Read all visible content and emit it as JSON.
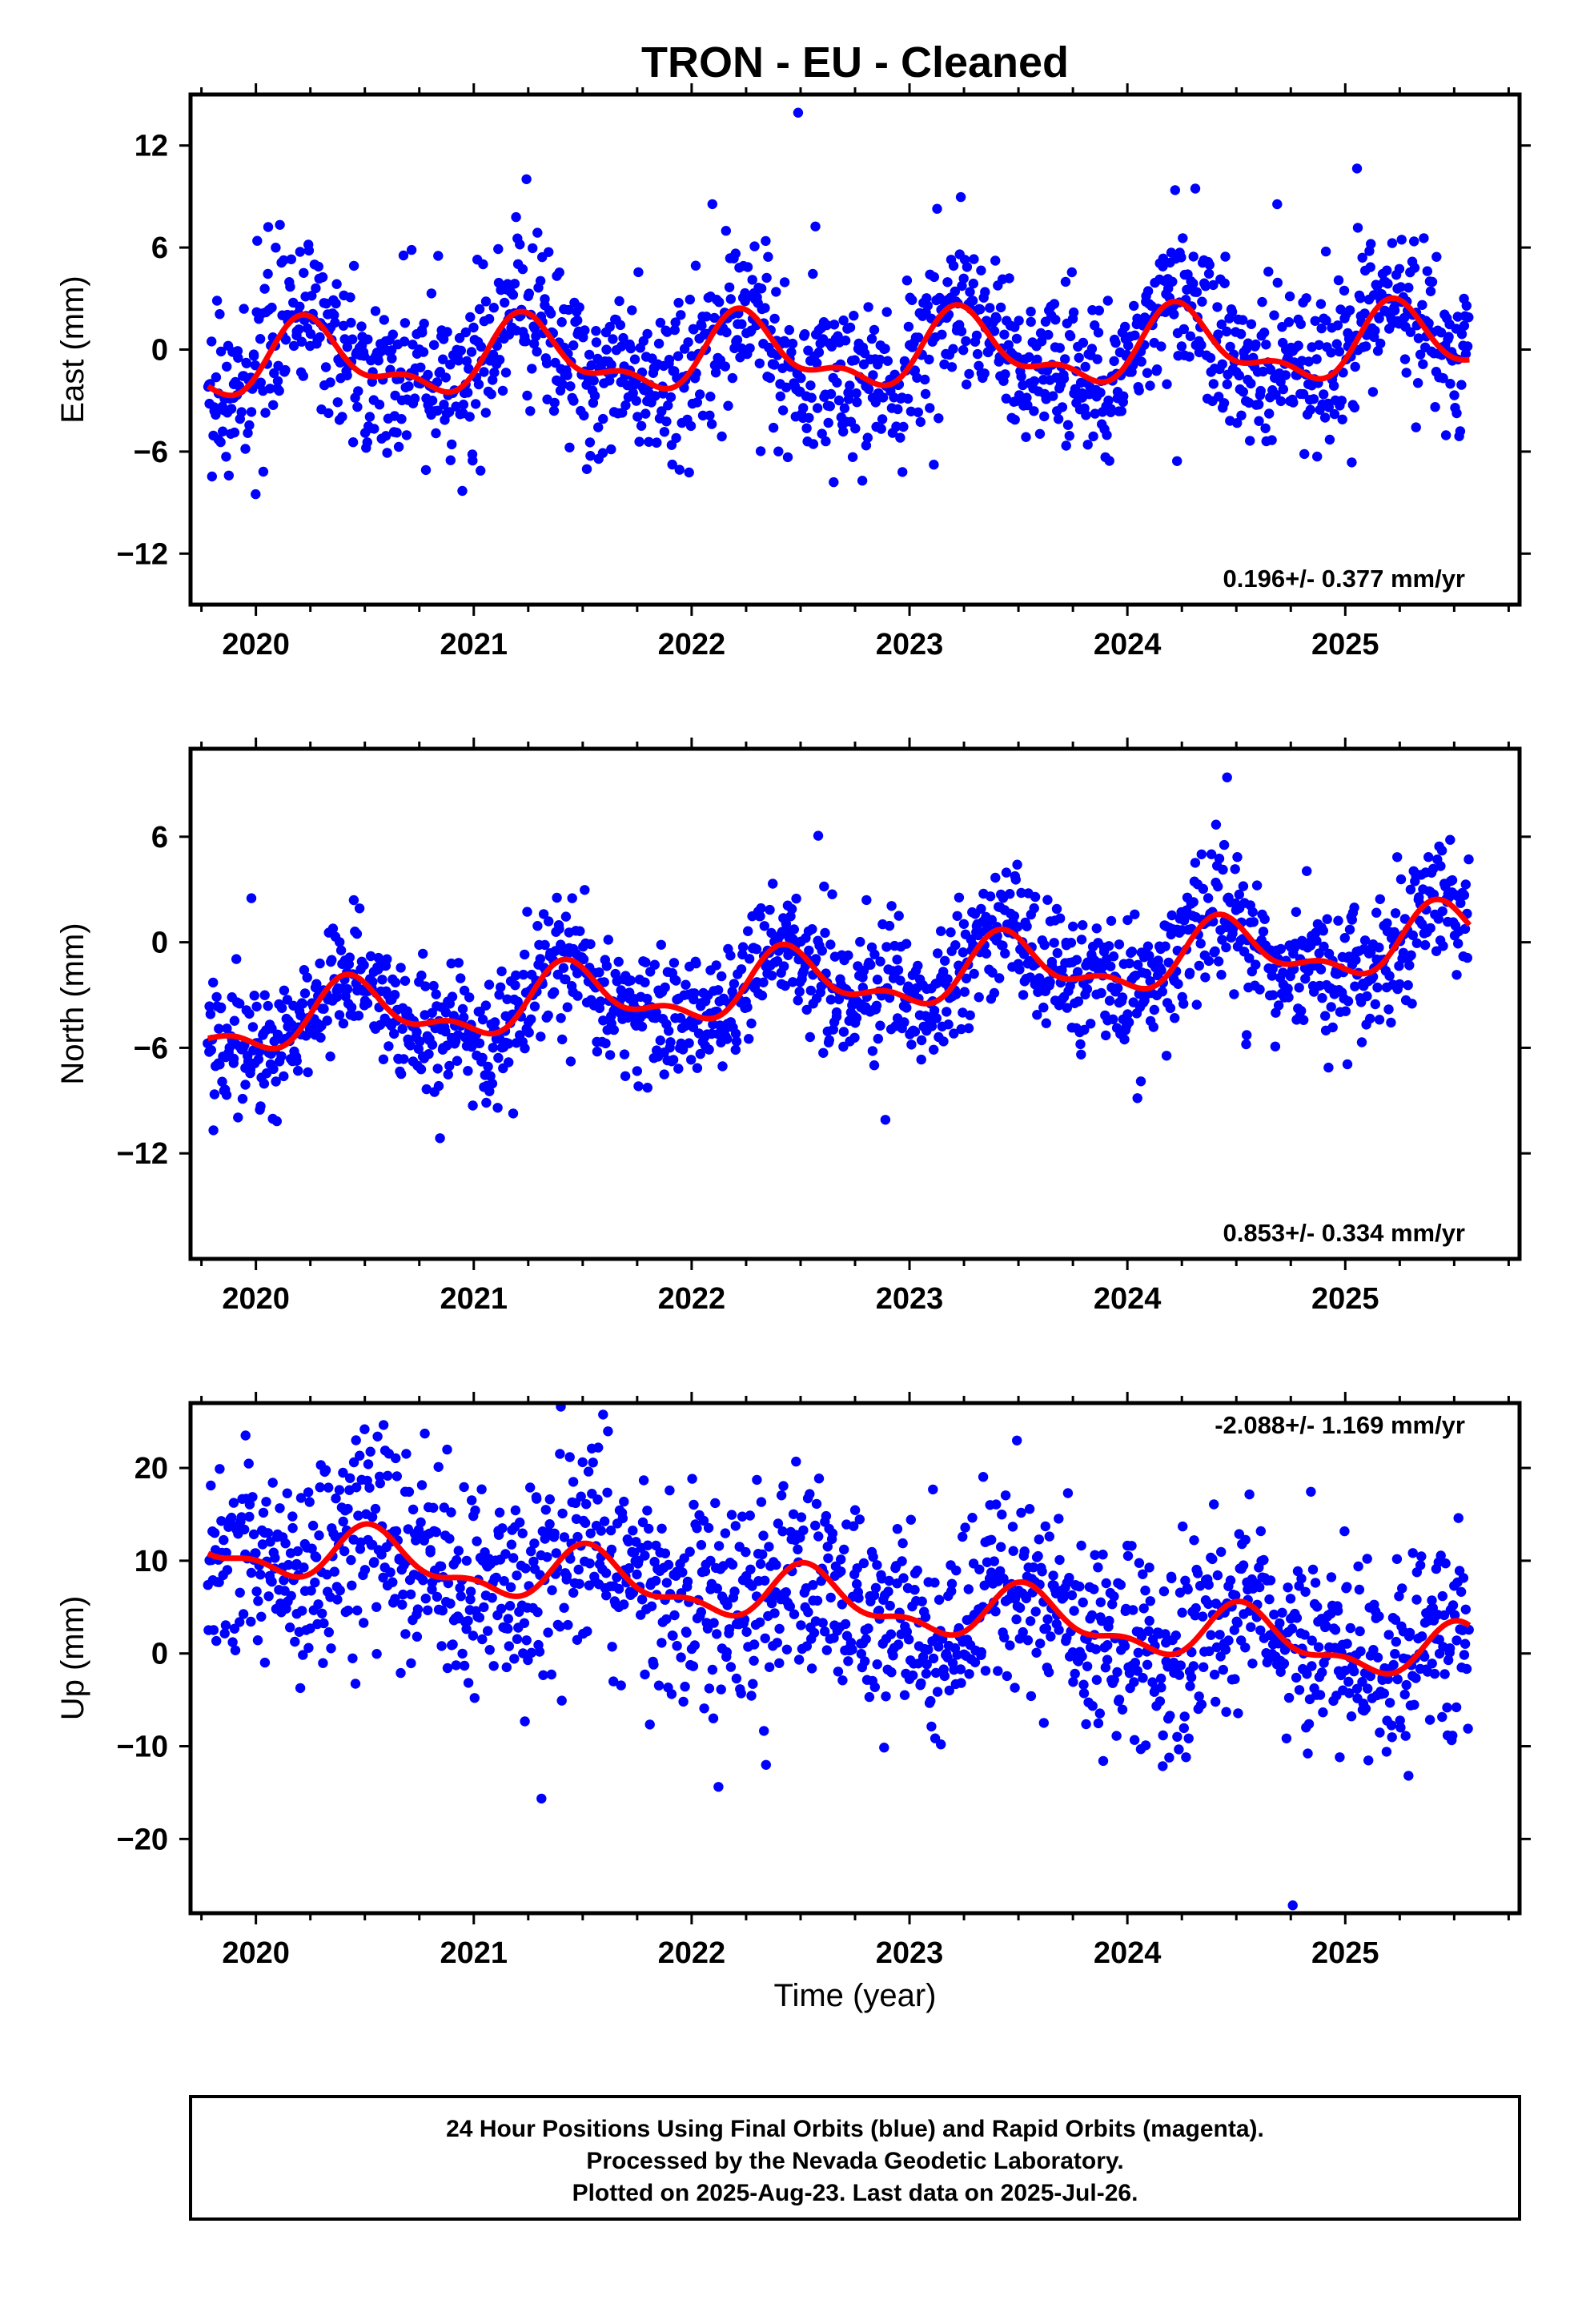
{
  "title": "TRON  - EU - Cleaned",
  "colors": {
    "points": "#0000ff",
    "fit": "#ff0000",
    "frame": "#000000"
  },
  "xaxis": {
    "label": "Time (year)",
    "ticks": [
      "2020",
      "2021",
      "2022",
      "2023",
      "2024",
      "2025"
    ],
    "range": [
      2019.7,
      2025.8
    ]
  },
  "caption": {
    "line1": "24 Hour Positions Using Final Orbits (blue) and Rapid Orbits (magenta).",
    "line2": "Processed by the Nevada Geodetic Laboratory.",
    "line3": "Plotted on 2025-Aug-23. Last data on 2025-Jul-26."
  },
  "chart_data": [
    {
      "type": "scatter",
      "ylabel": "East (mm)",
      "ylim": [
        -15,
        15
      ],
      "yticks": [
        "12",
        "6",
        "0",
        "-6",
        "-12"
      ],
      "rate_text": "0.196+/- 0.377 mm/yr",
      "rate_position": "bottom-right",
      "x_start": 2019.78,
      "x_end": 2025.57,
      "trend_slope": 0.196,
      "trend_offset": -0.3,
      "seasonal_amplitude": 1.9,
      "seasonal_phase_peak": 2020.25,
      "scatter_sd": 2.3,
      "fit_series": "smoothed model (red)",
      "data_series": "daily positions (blue)"
    },
    {
      "type": "scatter",
      "ylabel": "North (mm)",
      "ylim": [
        -18,
        11
      ],
      "yticks": [
        "6",
        "0",
        "-6",
        "-12"
      ],
      "rate_text": "0.853+/- 0.334 mm/yr",
      "rate_position": "bottom-right",
      "x_start": 2019.78,
      "x_end": 2025.57,
      "trend_slope": 0.853,
      "trend_offset": -2.4,
      "seasonal_amplitude": 1.6,
      "seasonal_phase_peak": 2020.45,
      "scatter_sd": 1.8,
      "fit_series": "smoothed model (red)",
      "data_series": "daily positions (blue)"
    },
    {
      "type": "scatter",
      "ylabel": "Up (mm)",
      "ylim": [
        -28,
        27
      ],
      "yticks": [
        "20",
        "10",
        "0",
        "-10",
        "-20"
      ],
      "rate_text": "-2.088+/- 1.169 mm/yr",
      "rate_position": "top-right",
      "x_start": 2019.78,
      "x_end": 2025.57,
      "trend_slope": -2.088,
      "trend_offset": 6.0,
      "seasonal_amplitude": 2.6,
      "seasonal_phase_peak": 2020.55,
      "scatter_sd": 5.5,
      "fit_series": "smoothed model (red)",
      "data_series": "daily positions (blue)"
    }
  ]
}
